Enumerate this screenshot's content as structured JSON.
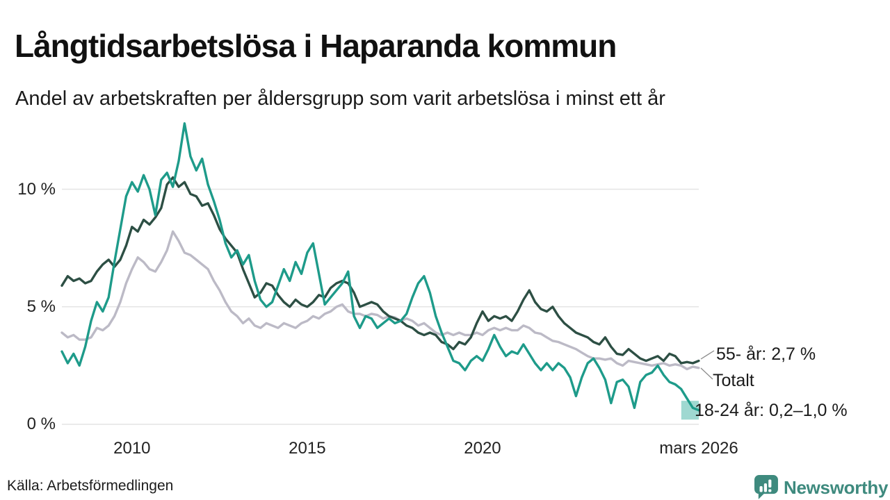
{
  "header": {
    "title": "Långtidsarbetslösa i Haparanda kommun",
    "subtitle": "Andel av arbetskraften per åldersgrupp som varit arbetslösa i minst ett år"
  },
  "source": "Källa: Arbetsförmedlingen",
  "branding": {
    "name": "Newsworthy",
    "color": "#3e8a7e"
  },
  "colors": {
    "grid": "#e4e4e4",
    "leader_line": "#8a8a8a",
    "text": "#1b1b1b"
  },
  "chart_data": {
    "type": "line",
    "title": "Långtidsarbetslösa i Haparanda kommun",
    "subtitle": "Andel av arbetskraften per åldersgrupp som varit arbetslösa i minst ett år",
    "unit": "%",
    "frequency": "every 2 months (approx.)",
    "grid": true,
    "legend_position": "end-of-line labels",
    "x_axis": {
      "range_years": [
        2008.0,
        2026.17
      ],
      "ticks": [
        {
          "label": "2010",
          "t": 2010
        },
        {
          "label": "2015",
          "t": 2015
        },
        {
          "label": "2020",
          "t": 2020
        },
        {
          "label": "mars 2026",
          "t": 2026.17
        }
      ]
    },
    "y_axis": {
      "range": [
        0,
        13.5
      ],
      "ticks": [
        {
          "label": "0 %",
          "value": 0
        },
        {
          "label": "5 %",
          "value": 5
        },
        {
          "label": "10 %",
          "value": 10
        }
      ]
    },
    "x_start": 2008.0,
    "x_step_years": 0.16667,
    "series": [
      {
        "name": "55- år",
        "end_label": "55- år: 2,7 %",
        "end_value": 2.7,
        "color": "#2d4f44",
        "values": [
          5.9,
          6.3,
          6.1,
          6.2,
          6.0,
          6.1,
          6.5,
          6.8,
          7.0,
          6.7,
          7.0,
          7.6,
          8.4,
          8.2,
          8.7,
          8.5,
          8.8,
          9.2,
          10.2,
          10.5,
          10.1,
          10.3,
          9.8,
          9.7,
          9.3,
          9.4,
          8.9,
          8.3,
          7.9,
          7.6,
          7.3,
          6.6,
          6.0,
          5.4,
          5.6,
          6.0,
          5.9,
          5.5,
          5.2,
          5.0,
          5.3,
          5.1,
          5.0,
          5.2,
          5.5,
          5.4,
          5.8,
          6.0,
          6.1,
          6.0,
          5.6,
          5.0,
          5.1,
          5.2,
          5.1,
          4.8,
          4.6,
          4.5,
          4.4,
          4.2,
          4.1,
          3.9,
          3.8,
          3.9,
          3.8,
          3.5,
          3.4,
          3.2,
          3.5,
          3.4,
          3.7,
          4.3,
          4.8,
          4.4,
          4.6,
          4.5,
          4.6,
          4.4,
          4.8,
          5.3,
          5.7,
          5.2,
          4.9,
          4.8,
          5.0,
          4.6,
          4.3,
          4.1,
          3.9,
          3.8,
          3.7,
          3.5,
          3.4,
          3.7,
          3.3,
          3.0,
          2.95,
          3.2,
          3.0,
          2.8,
          2.7,
          2.8,
          2.9,
          2.7,
          3.0,
          2.9,
          2.6,
          2.65,
          2.6,
          2.7
        ]
      },
      {
        "name": "Totalt",
        "end_label": "Totalt",
        "color": "#bcbac6",
        "values": [
          3.9,
          3.7,
          3.8,
          3.6,
          3.6,
          3.7,
          4.1,
          4.0,
          4.2,
          4.6,
          5.2,
          6.0,
          6.6,
          7.1,
          6.9,
          6.6,
          6.5,
          6.9,
          7.4,
          8.2,
          7.8,
          7.3,
          7.2,
          7.0,
          6.8,
          6.6,
          6.1,
          5.7,
          5.2,
          4.8,
          4.6,
          4.3,
          4.5,
          4.2,
          4.1,
          4.3,
          4.2,
          4.1,
          4.3,
          4.2,
          4.1,
          4.3,
          4.4,
          4.6,
          4.5,
          4.7,
          4.8,
          5.0,
          5.1,
          4.8,
          4.7,
          4.7,
          4.6,
          4.7,
          4.65,
          4.5,
          4.6,
          4.55,
          4.4,
          4.5,
          4.4,
          4.2,
          4.3,
          4.1,
          3.9,
          3.8,
          3.9,
          3.8,
          3.9,
          3.8,
          3.8,
          3.9,
          3.8,
          4.0,
          4.1,
          4.0,
          4.1,
          4.0,
          4.0,
          4.2,
          4.1,
          3.9,
          3.85,
          3.7,
          3.55,
          3.5,
          3.4,
          3.3,
          3.2,
          3.05,
          2.9,
          2.8,
          2.8,
          2.75,
          2.8,
          2.6,
          2.5,
          2.7,
          2.65,
          2.6,
          2.55,
          2.5,
          2.55,
          2.6,
          2.5,
          2.55,
          2.5,
          2.35,
          2.45,
          2.4
        ]
      },
      {
        "name": "18-24 år",
        "end_label": "18-24 år: 0,2–1,0 %",
        "end_value_range": [
          0.2,
          1.0
        ],
        "color": "#1e9b8a",
        "band_color": "#9fd8d1",
        "uncertainty_band": {
          "from_x": 2025.67,
          "to_x": 2026.17,
          "low": 0.2,
          "high": 1.0
        },
        "values": [
          3.1,
          2.6,
          3.0,
          2.5,
          3.3,
          4.4,
          5.2,
          4.8,
          5.4,
          6.9,
          8.3,
          9.7,
          10.3,
          9.9,
          10.6,
          10.0,
          8.9,
          10.4,
          10.7,
          10.1,
          11.2,
          12.8,
          11.4,
          10.8,
          11.3,
          10.2,
          9.5,
          8.7,
          7.7,
          7.1,
          7.4,
          6.8,
          7.2,
          6.1,
          5.3,
          5.0,
          5.2,
          5.9,
          6.6,
          6.1,
          6.9,
          6.4,
          7.3,
          7.7,
          6.4,
          5.1,
          5.4,
          5.7,
          6.0,
          6.5,
          4.6,
          4.1,
          4.6,
          4.5,
          4.1,
          4.3,
          4.5,
          4.3,
          4.4,
          4.7,
          5.4,
          6.0,
          6.3,
          5.6,
          4.6,
          3.9,
          3.3,
          2.7,
          2.6,
          2.3,
          2.7,
          2.9,
          2.7,
          3.2,
          3.8,
          3.3,
          2.9,
          3.1,
          3.0,
          3.4,
          3.0,
          2.6,
          2.3,
          2.6,
          2.3,
          2.6,
          2.4,
          2.0,
          1.2,
          2.0,
          2.6,
          2.8,
          2.4,
          1.9,
          0.9,
          1.8,
          1.9,
          1.6,
          0.7,
          1.8,
          2.1,
          2.2,
          2.5,
          2.1,
          1.8,
          1.7,
          1.5,
          1.1,
          0.7,
          0.6
        ]
      }
    ]
  }
}
